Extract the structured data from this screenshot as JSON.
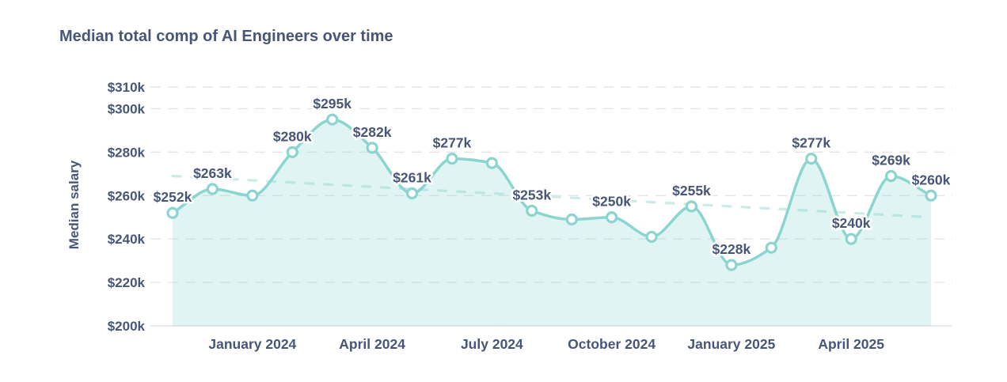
{
  "chart_data": {
    "type": "area",
    "title": "Median total comp of AI Engineers over time",
    "ylabel": "Median salary",
    "xlabel": "",
    "x": [
      "Nov 2023",
      "Dec 2023",
      "Jan 2024",
      "Feb 2024",
      "Mar 2024",
      "Apr 2024",
      "May 2024",
      "Jun 2024",
      "Jul 2024",
      "Aug 2024",
      "Sep 2024",
      "Oct 2024",
      "Nov 2024",
      "Dec 2024",
      "Jan 2025",
      "Feb 2025",
      "Mar 2025",
      "Apr 2025",
      "May 2025",
      "Jun 2025"
    ],
    "values": [
      252,
      263,
      260,
      280,
      295,
      282,
      261,
      277,
      275,
      253,
      249,
      250,
      241,
      255,
      228,
      236,
      277,
      240,
      269,
      260
    ],
    "point_labels": [
      "$252k",
      "$263k",
      null,
      "$280k",
      "$295k",
      "$282k",
      "$261k",
      "$277k",
      null,
      "$253k",
      null,
      "$250k",
      null,
      "$255k",
      "$228k",
      null,
      "$277k",
      "$240k",
      "$269k",
      "$260k"
    ],
    "y_ticks": [
      {
        "value": 200,
        "label": "$200k",
        "solid": true
      },
      {
        "value": 220,
        "label": "$220k",
        "solid": false
      },
      {
        "value": 240,
        "label": "$240k",
        "solid": false
      },
      {
        "value": 260,
        "label": "$260k",
        "solid": false
      },
      {
        "value": 280,
        "label": "$280k",
        "solid": false
      },
      {
        "value": 300,
        "label": "$300k",
        "solid": false
      },
      {
        "value": 310,
        "label": "$310k",
        "solid": false
      }
    ],
    "x_ticks": [
      {
        "index": 2,
        "label": "January 2024"
      },
      {
        "index": 5,
        "label": "April 2024"
      },
      {
        "index": 8,
        "label": "July 2024"
      },
      {
        "index": 11,
        "label": "October 2024"
      },
      {
        "index": 14,
        "label": "January 2025"
      },
      {
        "index": 17,
        "label": "April 2025"
      }
    ],
    "ylim": [
      200,
      310
    ],
    "grid": true,
    "legend": false,
    "trend": {
      "style": "dashed",
      "start_value": 269,
      "end_value": 250
    },
    "colors": {
      "line": "#8BD5D0",
      "marker_stroke": "#8BD5D0",
      "marker_fill": "#FFFFFF",
      "fill": "#8ED7D2",
      "fill_opacity": 0.27,
      "trend": "#C9ECE8",
      "grid": "#E4E5E9",
      "baseline": "#DFE2E6",
      "text": "#475677"
    }
  }
}
